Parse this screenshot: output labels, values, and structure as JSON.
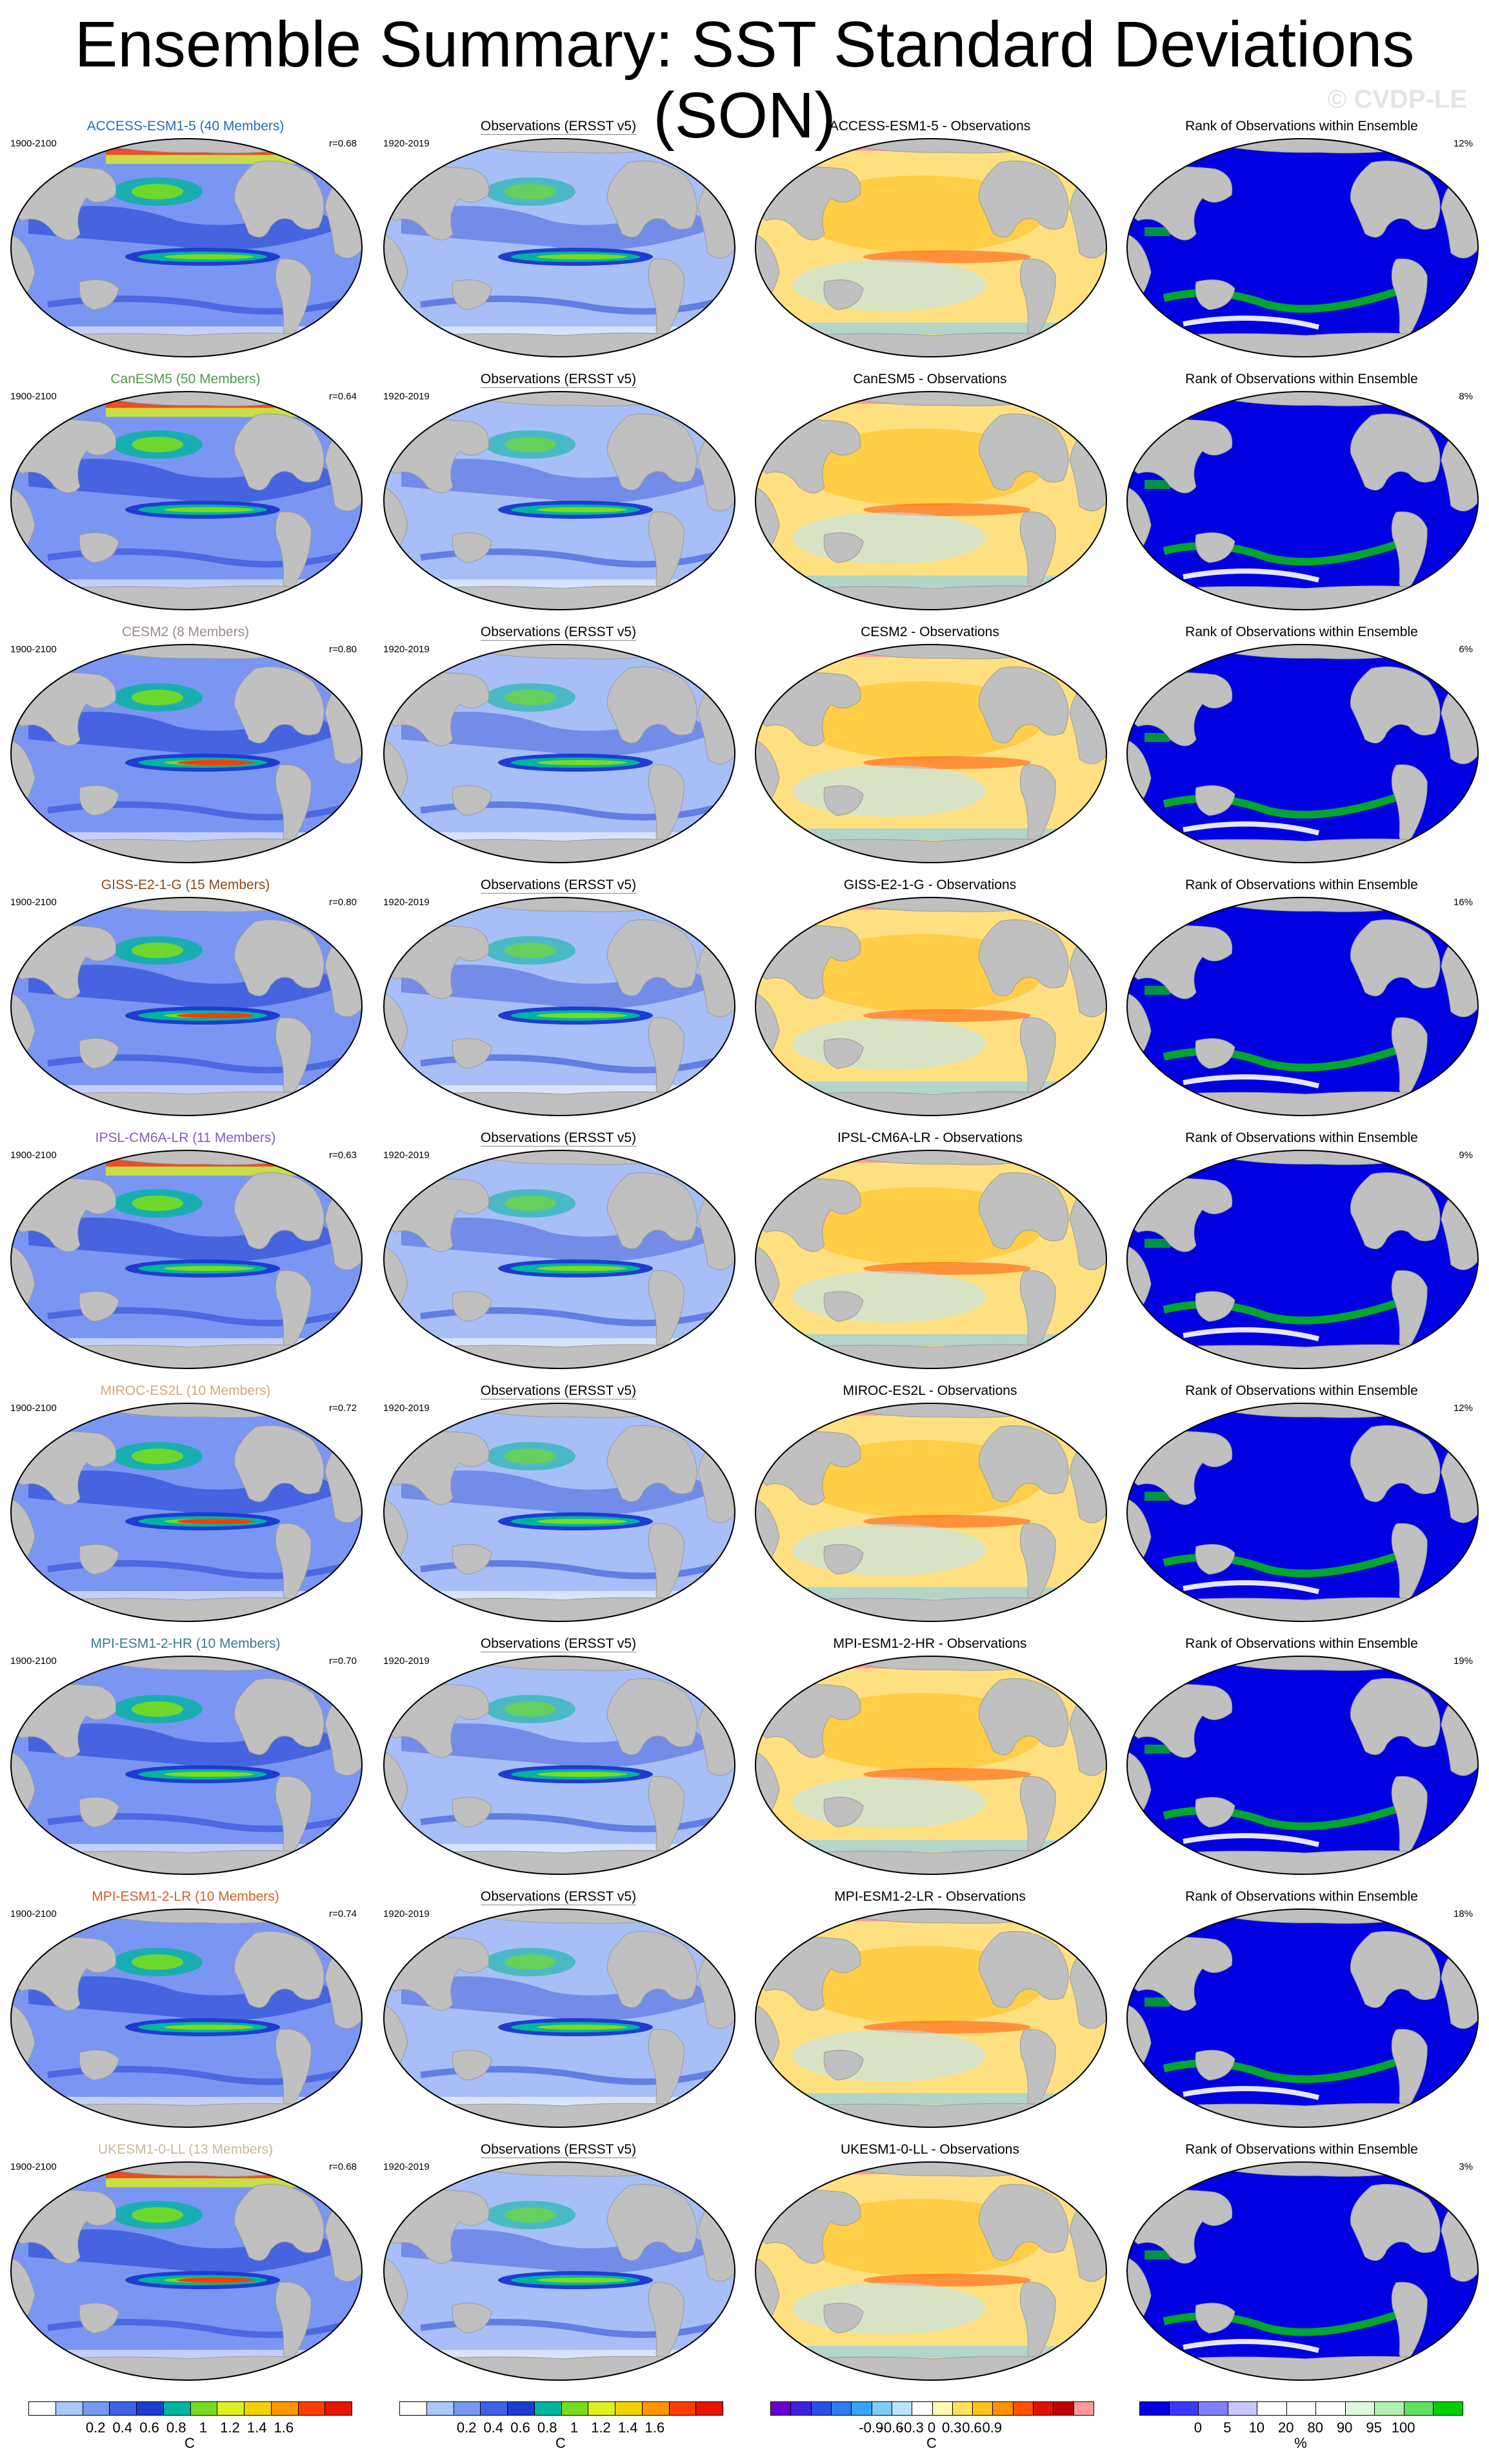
{
  "title": "Ensemble Summary: SST Standard Deviations (SON)",
  "credit": "© CVDP-LE",
  "obs_title": "Observations (ERSST v5)",
  "rank_title": "Rank of Observations within Ensemble",
  "model_years": "1900-2100",
  "obs_years": "1920-2019",
  "rows": [
    {
      "model_label": "ACCESS-ESM1-5 (40 Members)",
      "label_color": "#1f6fb5",
      "corr": "r=0.68",
      "diff_title": "ACCESS-ESM1-5 - Observations",
      "rank_pct": "12%"
    },
    {
      "model_label": "CanESM5 (50 Members)",
      "label_color": "#4d9a4d",
      "corr": "r=0.64",
      "diff_title": "CanESM5 - Observations",
      "rank_pct": "8%"
    },
    {
      "model_label": "CESM2 (8 Members)",
      "label_color": "#9a8a8a",
      "corr": "r=0.80",
      "diff_title": "CESM2 - Observations",
      "rank_pct": "6%"
    },
    {
      "model_label": "GISS-E2-1-G (15 Members)",
      "label_color": "#8a4a1a",
      "corr": "r=0.80",
      "diff_title": "GISS-E2-1-G - Observations",
      "rank_pct": "16%"
    },
    {
      "model_label": "IPSL-CM6A-LR (11 Members)",
      "label_color": "#8a5ab5",
      "corr": "r=0.63",
      "diff_title": "IPSL-CM6A-LR - Observations",
      "rank_pct": "9%"
    },
    {
      "model_label": "MIROC-ES2L (10 Members)",
      "label_color": "#d4a87a",
      "corr": "r=0.72",
      "diff_title": "MIROC-ES2L - Observations",
      "rank_pct": "12%"
    },
    {
      "model_label": "MPI-ESM1-2-HR (10 Members)",
      "label_color": "#3a7a8a",
      "corr": "r=0.70",
      "diff_title": "MPI-ESM1-2-HR - Observations",
      "rank_pct": "19%"
    },
    {
      "model_label": "MPI-ESM1-2-LR (10 Members)",
      "label_color": "#d4602a",
      "corr": "r=0.74",
      "diff_title": "MPI-ESM1-2-LR - Observations",
      "rank_pct": "18%"
    },
    {
      "model_label": "UKESM1-0-LL (13 Members)",
      "label_color": "#c8b89a",
      "corr": "r=0.68",
      "diff_title": "UKESM1-0-LL - Observations",
      "rank_pct": "3%"
    }
  ],
  "colorbars": {
    "sst": {
      "colors": [
        "#ffffff",
        "#a8c8f8",
        "#7898f0",
        "#3c64e6",
        "#1e3cd2",
        "#00b4a0",
        "#78dc1e",
        "#dcf01e",
        "#f0d200",
        "#ff9600",
        "#ff3c00",
        "#e61400"
      ],
      "ticks": [
        "0.2",
        "0.4",
        "0.6",
        "0.8",
        "1",
        "1.2",
        "1.4",
        "1.6"
      ],
      "unit": "C"
    },
    "diff": {
      "colors": [
        "#6a00d0",
        "#4020e0",
        "#2850e8",
        "#2c7cf0",
        "#38a4f8",
        "#80ccf8",
        "#b8e4fc",
        "#ffffff",
        "#fff8b0",
        "#ffe060",
        "#ffc020",
        "#ff9000",
        "#ff5000",
        "#e01000",
        "#c00000",
        "#ff9898"
      ],
      "ticks": [
        "-0.9",
        "-0.6",
        "-0.3",
        "0",
        "0.3",
        "0.6",
        "0.9"
      ],
      "unit": "C"
    },
    "rank": {
      "colors": [
        "#0000e0",
        "#3a3aff",
        "#8080ff",
        "#c8c8ff",
        "#ffffff",
        "#ffffff",
        "#ffffff",
        "#e0f8e0",
        "#b0f0b0",
        "#60e060",
        "#00d000"
      ],
      "ticks": [
        "0",
        "5",
        "10",
        "20",
        "80",
        "90",
        "95",
        "100"
      ],
      "unit": "%"
    }
  }
}
